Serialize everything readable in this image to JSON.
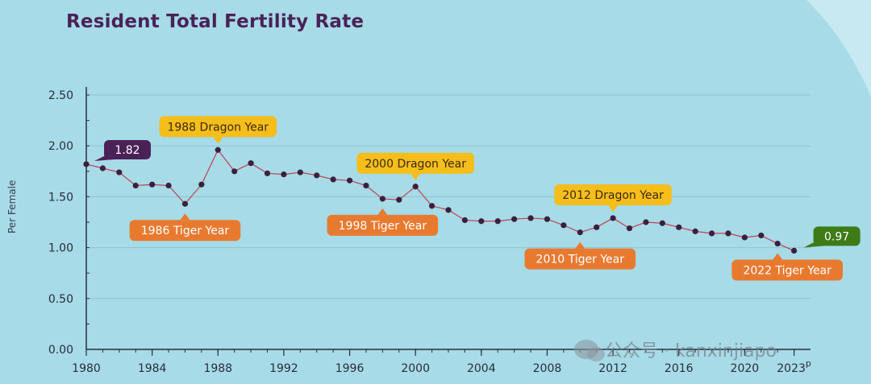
{
  "title": "Resident Total Fertility Rate",
  "watermark": "公众号 · kanxinjiapo",
  "colors": {
    "background": "#a6dbe7",
    "line": "#c0404e",
    "marker": "#3a1f3f",
    "tiger": "#e87a30",
    "dragon": "#f5be1a",
    "start_badge": "#4a2257",
    "end_badge": "#3e7a16",
    "title": "#4a2257"
  },
  "chart_data": {
    "type": "line",
    "title": "Resident Total Fertility Rate",
    "ylabel": "Per Female",
    "xlabel": "",
    "ylim": [
      0,
      2.5
    ],
    "yticks": [
      "0.00",
      "0.50",
      "1.00",
      "1.50",
      "2.00",
      "2.50"
    ],
    "xticks": [
      "1980",
      "1984",
      "1988",
      "1992",
      "1996",
      "2000",
      "2004",
      "2008",
      "2012",
      "2016",
      "2020",
      "2023p"
    ],
    "grid": true,
    "series": [
      {
        "x": [
          1980,
          1981,
          1982,
          1983,
          1984,
          1985,
          1986,
          1987,
          1988,
          1989,
          1990,
          1991,
          1992,
          1993,
          1994,
          1995,
          1996,
          1997,
          1998,
          1999,
          2000,
          2001,
          2002,
          2003,
          2004,
          2005,
          2006,
          2007,
          2008,
          2009,
          2010,
          2011,
          2012,
          2013,
          2014,
          2015,
          2016,
          2017,
          2018,
          2019,
          2020,
          2021,
          2022,
          2023
        ],
        "values": [
          1.82,
          1.78,
          1.74,
          1.61,
          1.62,
          1.61,
          1.43,
          1.62,
          1.96,
          1.75,
          1.83,
          1.73,
          1.72,
          1.74,
          1.71,
          1.67,
          1.66,
          1.61,
          1.48,
          1.47,
          1.6,
          1.41,
          1.37,
          1.27,
          1.26,
          1.26,
          1.28,
          1.29,
          1.28,
          1.22,
          1.15,
          1.2,
          1.29,
          1.19,
          1.25,
          1.24,
          1.2,
          1.16,
          1.14,
          1.14,
          1.1,
          1.12,
          1.04,
          0.97
        ]
      }
    ],
    "annotations": [
      {
        "year": 1980,
        "value": 1.82,
        "label": "1.82",
        "kind": "start"
      },
      {
        "year": 1986,
        "value": 1.43,
        "label": "1986 Tiger Year",
        "kind": "tiger"
      },
      {
        "year": 1988,
        "value": 1.96,
        "label": "1988 Dragon Year",
        "kind": "dragon"
      },
      {
        "year": 1998,
        "value": 1.48,
        "label": "1998 Tiger Year",
        "kind": "tiger"
      },
      {
        "year": 2000,
        "value": 1.6,
        "label": "2000 Dragon Year",
        "kind": "dragon"
      },
      {
        "year": 2010,
        "value": 1.15,
        "label": "2010 Tiger Year",
        "kind": "tiger"
      },
      {
        "year": 2012,
        "value": 1.29,
        "label": "2012 Dragon Year",
        "kind": "dragon"
      },
      {
        "year": 2022,
        "value": 1.04,
        "label": "2022 Tiger Year",
        "kind": "tiger"
      },
      {
        "year": 2023,
        "value": 0.97,
        "label": "0.97",
        "kind": "end"
      }
    ]
  }
}
